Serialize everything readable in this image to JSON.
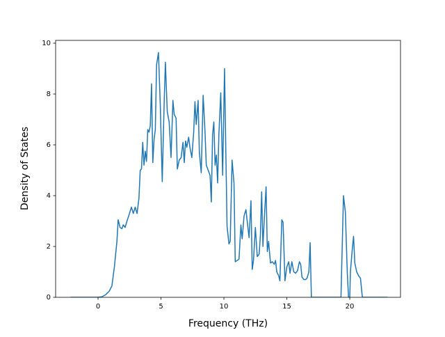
{
  "chart_data": {
    "type": "line",
    "xlabel": "Frequency (THz)",
    "ylabel": "Density of States",
    "xlim": [
      -3.37,
      24.03
    ],
    "ylim": [
      0,
      10.11
    ],
    "xticks": [
      0,
      5,
      10,
      15,
      20
    ],
    "yticks": [
      0,
      2,
      4,
      6,
      8,
      10
    ],
    "x": [
      -2.2,
      0,
      0.3,
      0.6,
      0.9,
      1.1,
      1.3,
      1.5,
      1.6,
      1.75,
      1.9,
      2.0,
      2.15,
      2.3,
      2.5,
      2.65,
      2.8,
      2.95,
      3.1,
      3.25,
      3.35,
      3.45,
      3.55,
      3.65,
      3.75,
      3.85,
      3.95,
      4.05,
      4.15,
      4.25,
      4.35,
      4.45,
      4.55,
      4.65,
      4.8,
      4.95,
      5.1,
      5.25,
      5.35,
      5.5,
      5.65,
      5.8,
      5.95,
      6.05,
      6.2,
      6.3,
      6.45,
      6.6,
      6.75,
      6.85,
      6.95,
      7.05,
      7.2,
      7.3,
      7.45,
      7.6,
      7.7,
      7.8,
      7.95,
      8.05,
      8.2,
      8.35,
      8.5,
      8.6,
      8.75,
      8.9,
      9.0,
      9.1,
      9.2,
      9.3,
      9.4,
      9.5,
      9.6,
      9.75,
      9.9,
      10.05,
      10.15,
      10.25,
      10.4,
      10.5,
      10.65,
      10.8,
      10.9,
      11.05,
      11.2,
      11.35,
      11.45,
      11.6,
      11.75,
      11.85,
      12.0,
      12.15,
      12.25,
      12.35,
      12.5,
      12.65,
      12.8,
      12.9,
      13.0,
      13.1,
      13.2,
      13.35,
      13.45,
      13.55,
      13.7,
      13.85,
      14.0,
      14.1,
      14.2,
      14.35,
      14.45,
      14.6,
      14.7,
      14.85,
      15.0,
      15.15,
      15.25,
      15.4,
      15.55,
      15.7,
      15.85,
      16.0,
      16.1,
      16.2,
      16.35,
      16.5,
      16.6,
      16.75,
      16.85,
      16.95,
      19.3,
      19.5,
      19.65,
      19.8,
      19.9,
      20.0,
      20.05,
      20.2,
      20.3,
      20.4,
      20.55,
      20.7,
      20.85,
      21.0,
      23.0
    ],
    "series": [
      {
        "color": "#1f77b4",
        "values": [
          0,
          0,
          0.02,
          0.1,
          0.25,
          0.45,
          1.2,
          2.2,
          3.05,
          2.75,
          2.7,
          2.85,
          2.75,
          3.0,
          3.3,
          3.55,
          3.3,
          3.55,
          3.3,
          3.9,
          5.0,
          5.05,
          6.1,
          5.2,
          5.75,
          5.35,
          6.6,
          6.5,
          6.75,
          8.4,
          5.3,
          6.2,
          6.6,
          9.15,
          9.63,
          7.5,
          4.55,
          7.6,
          9.25,
          7.3,
          6.9,
          5.5,
          7.75,
          7.2,
          7.05,
          5.05,
          5.4,
          5.5,
          6.1,
          5.3,
          6.15,
          5.9,
          6.3,
          5.9,
          5.5,
          6.5,
          7.7,
          6.8,
          7.75,
          5.7,
          4.9,
          7.95,
          6.5,
          5.2,
          5.0,
          4.8,
          3.75,
          6.4,
          6.9,
          5.2,
          5.6,
          4.5,
          6.4,
          8.05,
          4.8,
          9.0,
          5.8,
          2.8,
          2.1,
          2.2,
          5.4,
          4.5,
          1.4,
          1.45,
          1.5,
          2.85,
          2.3,
          3.2,
          3.45,
          3.0,
          2.35,
          3.8,
          1.1,
          1.45,
          2.75,
          1.6,
          1.7,
          2.45,
          4.15,
          2.0,
          3.0,
          4.35,
          1.8,
          2.2,
          1.35,
          1.4,
          1.3,
          1.45,
          1.0,
          0.85,
          0.65,
          3.05,
          2.95,
          0.65,
          1.2,
          1.4,
          0.95,
          1.4,
          1.0,
          0.95,
          1.05,
          1.4,
          1.3,
          0.8,
          0.7,
          0.7,
          0.75,
          1.0,
          2.15,
          0,
          0,
          4.0,
          3.35,
          1.0,
          0,
          0,
          1.0,
          1.9,
          2.4,
          1.35,
          1.0,
          0.85,
          0.75,
          0,
          0
        ]
      }
    ]
  }
}
